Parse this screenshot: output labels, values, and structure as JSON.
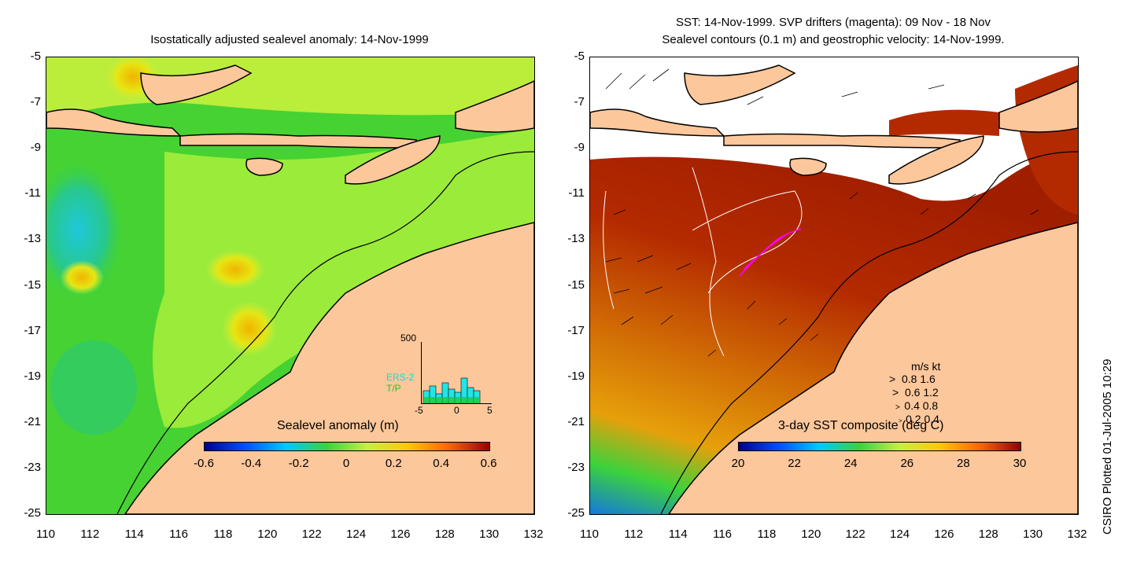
{
  "left_panel": {
    "title": "Isostatically adjusted sealevel anomaly: 14-Nov-1999",
    "colorbar_title": "Sealevel anomaly (m)",
    "colorbar_ticks": [
      "-0.6",
      "-0.4",
      "-0.2",
      "0",
      "0.2",
      "0.4",
      "0.6"
    ],
    "colorbar_range": [
      -0.6,
      0.6
    ],
    "histogram": {
      "y_max_label": "500",
      "series_labels": [
        "ERS-2",
        "T/P"
      ],
      "x_ticks": [
        "-5",
        "0",
        "5"
      ]
    }
  },
  "right_panel": {
    "title_line1": "SST: 14-Nov-1999. SVP drifters (magenta): 09 Nov - 18 Nov",
    "title_line2": "Sealevel contours (0.1 m) and geostrophic velocity: 14-Nov-1999.",
    "colorbar_title": "3-day SST composite (deg C)",
    "colorbar_ticks": [
      "20",
      "22",
      "24",
      "26",
      "28",
      "30"
    ],
    "colorbar_range": [
      20,
      30
    ],
    "velocity_legend": {
      "header": "m/s  kt",
      "rows": [
        "0.8  1.6",
        "0.6  1.2",
        "0.4  0.8",
        "0.2  0.4"
      ]
    }
  },
  "axes": {
    "y_ticks": [
      "-5",
      "-7",
      "-9",
      "-11",
      "-13",
      "-15",
      "-17",
      "-19",
      "-21",
      "-23",
      "-25"
    ],
    "x_ticks": [
      "110",
      "112",
      "114",
      "116",
      "118",
      "120",
      "122",
      "124",
      "126",
      "128",
      "130",
      "132"
    ]
  },
  "side_label": "CSIRO Plotted 01-Jul-2005 10:29",
  "colors": {
    "land": "#fcc79b",
    "sla_positive": "#c8f03c",
    "sla_neutral": "#3cd23c",
    "sst_warm": "#b42a00",
    "sst_mid": "#e6820a"
  }
}
